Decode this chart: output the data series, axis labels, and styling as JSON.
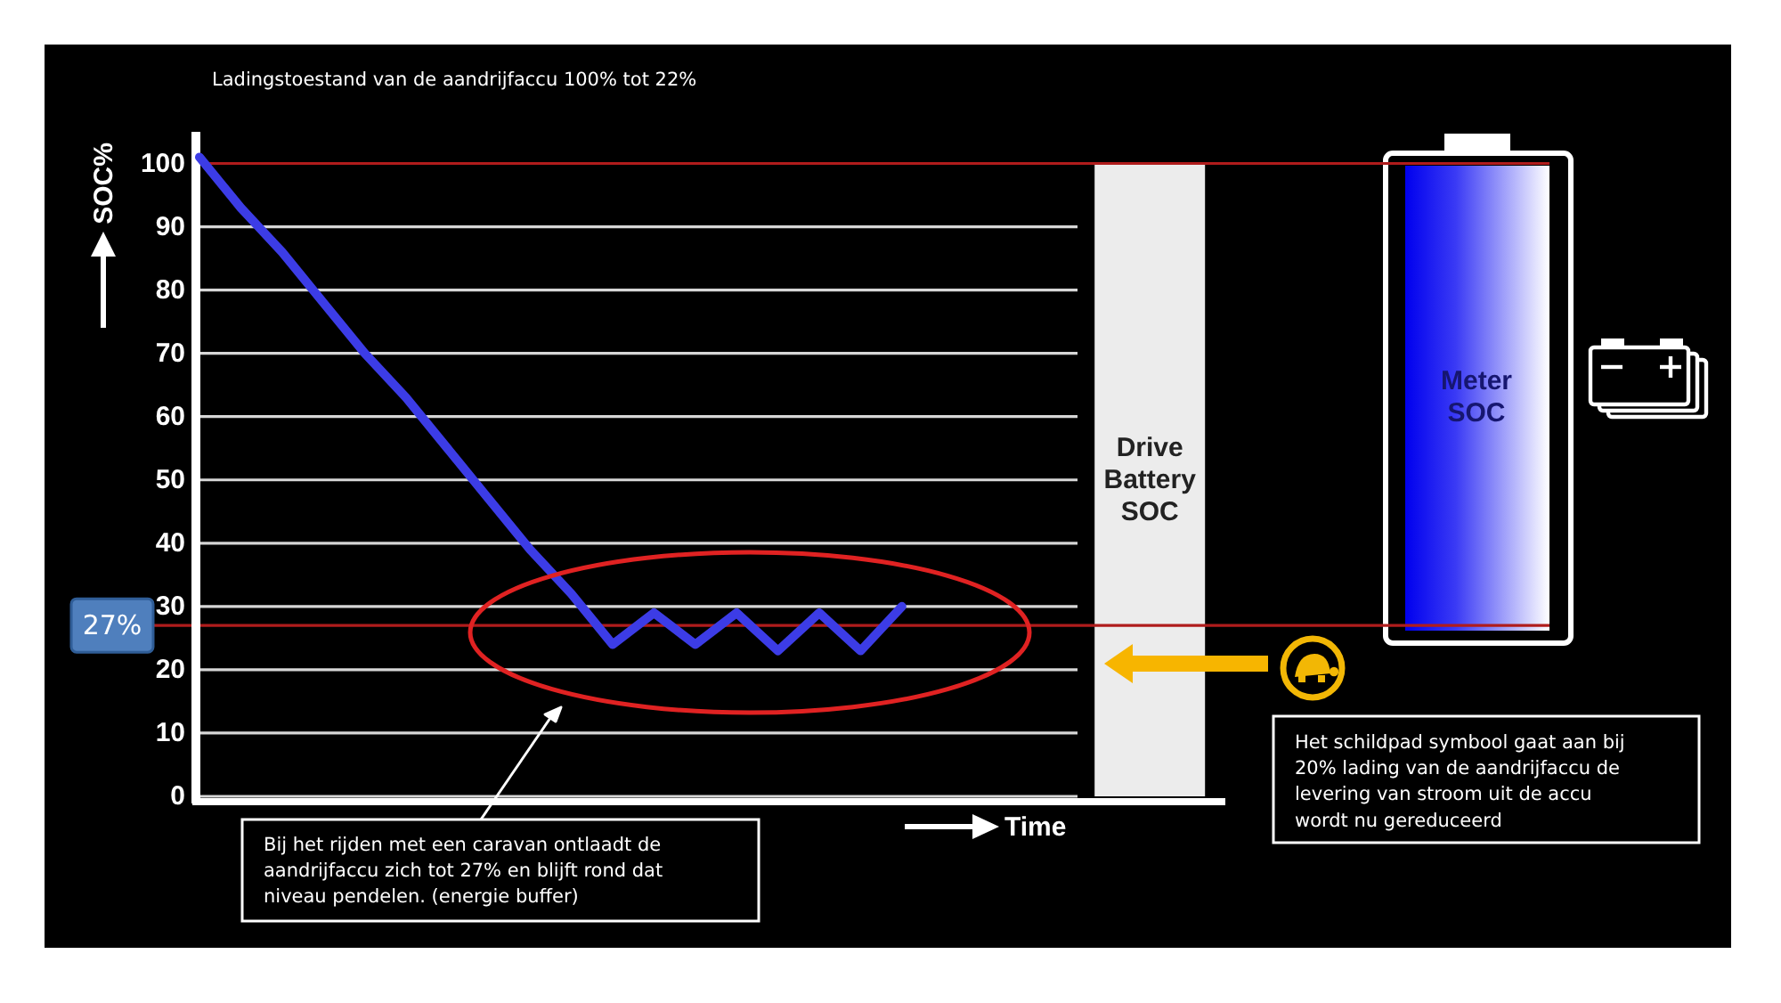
{
  "chart_data": {
    "type": "line",
    "title": "Ladingstoestand van de aandrijfaccu 100% tot 22%",
    "xlabel": "Time",
    "ylabel": "SOC%",
    "categories": [
      null,
      null,
      null,
      null,
      null,
      null,
      null,
      null,
      null,
      null,
      null,
      null,
      null,
      null,
      null,
      null,
      null,
      null,
      null,
      null,
      null,
      null,
      null,
      null,
      null,
      null
    ],
    "ylim": [
      0,
      105
    ],
    "yticks": [
      0,
      10,
      20,
      30,
      40,
      50,
      60,
      70,
      80,
      90,
      100
    ],
    "tick_labels": "y",
    "grid": "y",
    "series": [
      {
        "color": "#3c3ce6",
        "values": [
          101,
          93,
          86,
          78,
          70,
          63,
          55,
          47,
          39,
          32,
          24,
          29,
          24,
          29,
          23,
          29,
          23,
          30,
          null,
          null,
          null,
          null,
          null,
          null,
          null,
          null
        ]
      }
    ],
    "ref_lines": [
      {
        "axis": "y",
        "value": 100,
        "color": "#b01c1c"
      },
      {
        "axis": "y",
        "value": 27,
        "label": "27%",
        "color": "#b01c1c"
      }
    ],
    "annotations": [
      "Bij het rijden met een caravan ontlaadt de aandrijfaccu zich tot 27% en blijft rond dat niveau pendelen. (energie buffer)",
      "Drive Battery SOC",
      "Meter SOC",
      "Het schildpad symbool gaat aan bij 20% lading van de aandrijfaccu de levering van stroom uit de accu wordt nu gereduceerd"
    ]
  }
}
